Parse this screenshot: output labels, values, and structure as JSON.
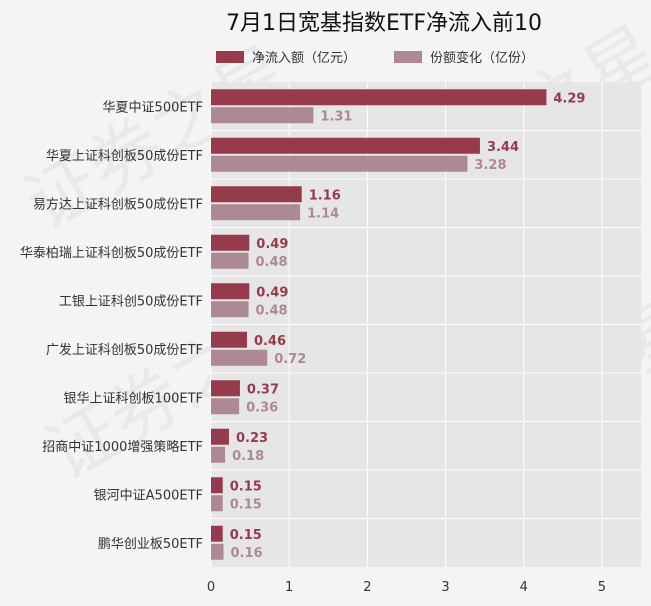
{
  "watermark_text": "证券之星",
  "colors": {
    "plot_bg": "#e6e6e6",
    "grid": "#ffffff",
    "series_1": "#963b4c",
    "series_2": "#ad8994",
    "text": "#333333",
    "title": "#111111"
  },
  "chart_data": {
    "type": "bar",
    "orientation": "horizontal",
    "title": "7月1日宽基指数ETF净流入前10",
    "xlabel": "",
    "ylabel": "",
    "xlim": [
      0,
      5.5
    ],
    "xticks": [
      0,
      1,
      2,
      3,
      4,
      5
    ],
    "grid": true,
    "legend_position": "top",
    "categories": [
      "华夏中证500ETF",
      "华夏上证科创板50成份ETF",
      "易方达上证科创板50成份ETF",
      "华泰柏瑞上证科创板50成份ETF",
      "工银上证科创50成份ETF",
      "广发上证科创板50成份ETF",
      "银华上证科创板100ETF",
      "招商中证1000增强策略ETF",
      "银河中证A500ETF",
      "鹏华创业板50ETF"
    ],
    "series": [
      {
        "name": "净流入额（亿元）",
        "values": [
          4.29,
          3.44,
          1.16,
          0.49,
          0.49,
          0.46,
          0.37,
          0.23,
          0.15,
          0.15
        ],
        "labels": [
          "4.29",
          "3.44",
          "1.16",
          "0.49",
          "0.49",
          "0.46",
          "0.37",
          "0.23",
          "0.15",
          "0.15"
        ]
      },
      {
        "name": "份额变化（亿份）",
        "values": [
          1.31,
          3.28,
          1.14,
          0.48,
          0.48,
          0.72,
          0.36,
          0.18,
          0.15,
          0.16
        ],
        "labels": [
          "1.31",
          "3.28",
          "1.14",
          "0.48",
          "0.48",
          "0.72",
          "0.36",
          "0.18",
          "0.15",
          "0.16"
        ]
      }
    ]
  }
}
